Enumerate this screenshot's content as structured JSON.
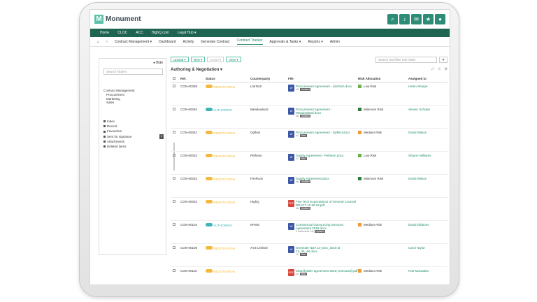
{
  "app": {
    "name": "Monument"
  },
  "colors": {
    "accent": "#2d8c75",
    "nav_bg": "#1f6452",
    "link": "#1e8a68",
    "amber": "#f4b93a",
    "teal": "#3fb5b8",
    "green": "#6cb04a",
    "dark_green": "#2e7d3a",
    "orange": "#ef9b3a"
  },
  "top_icons": [
    "search-icon",
    "bell-icon",
    "mail-icon",
    "star-icon",
    "user-icon"
  ],
  "nav": {
    "items": [
      "Home",
      "CLOC",
      "ACC",
      "HighQ.com",
      "Legal Hub ▾"
    ]
  },
  "subnav": {
    "items": [
      {
        "label": "Contract Management ▾"
      },
      {
        "label": "Dashboard"
      },
      {
        "label": "Activity"
      },
      {
        "label": "Generate Contract"
      },
      {
        "label": "Contract Tracker",
        "active": true
      },
      {
        "label": "Approvals & Tasks ▾"
      },
      {
        "label": "Reports ▾"
      },
      {
        "label": "Admin"
      }
    ]
  },
  "sidebar": {
    "hide_label": "◂ Hide",
    "search_placeholder": "Search folders",
    "tree": [
      "Contract Management",
      "Procurement",
      "Marketing",
      "Sales"
    ],
    "links": [
      "Index",
      "Recent",
      "Favourites",
      "Sent for signature",
      "Attachments",
      "Deleted items"
    ],
    "sent_count": "2"
  },
  "toolbar": {
    "upload": "Upload ▾",
    "new": "New ▾",
    "action": "Action ▾",
    "view": "View ▾",
    "search_placeholder": "Search and filter this folder"
  },
  "section": {
    "title": "Authoring & Negotiation ▾"
  },
  "table": {
    "headers": [
      "Ref.",
      "Status",
      "Counterparty",
      "File",
      "Risk Allocation",
      "Assigned to"
    ],
    "rows": [
      {
        "ref": "CON-00339",
        "status": "NEGOTIATION",
        "status_color": "#f4b93a",
        "counterparty": "LiteTech",
        "file_type": "W",
        "file": "Procurement Agreement - LiteTech.docx",
        "meta": "v2,",
        "tag": "Updated",
        "risk_color": "#6cb04a",
        "risk": "Low Risk",
        "assigned": "Helen Sharpe"
      },
      {
        "ref": "CON-00040",
        "status": "AUTHORING",
        "status_color": "#3fb5b8",
        "counterparty": "Meadowland",
        "file_type": "W",
        "file": "Procurement Agreement - Meadowland.docx",
        "meta": "v6,",
        "tag": "Updated",
        "risk_color": "#2e7d3a",
        "risk": "Minimum Risk",
        "assigned": "Steven Scholes"
      },
      {
        "ref": "CON-00042",
        "status": "NEGOTIATION",
        "status_color": "#f4b93a",
        "counterparty": "Opflexl",
        "file_type": "W",
        "file": "Procurement Agreement - Opflexl.docx",
        "meta": "v1,",
        "tag": "New",
        "risk_color": "#ef9b3a",
        "risk": "Medium Risk",
        "assigned": "David Wilson"
      },
      {
        "ref": "CON-00032",
        "status": "NEGOTIATION",
        "status_color": "#f4b93a",
        "counterparty": "Petheon",
        "file_type": "W",
        "file": "Supply Agreement - Petheon.docx",
        "meta": "v1,",
        "tag": "New",
        "risk_color": "#6cb04a",
        "risk": "Low Risk",
        "assigned": "Sharon Williams"
      },
      {
        "ref": "CON-00033",
        "status": "NEGOTIATION",
        "status_color": "#f4b93a",
        "counterparty": "FireRock",
        "file_type": "W",
        "file": "Supply Agreement.docx",
        "meta": "v6,",
        "tag": "Updated",
        "risk_color": "#2e7d3a",
        "risk": "Minimum Risk",
        "assigned": "David Wilson"
      },
      {
        "ref": "CON-00034",
        "status": "NEGOTIATION",
        "status_color": "#f4b93a",
        "counterparty": "HighQ",
        "file_type": "PDF",
        "file": "Five Tech Expectations of General Counsel DRAFT 10.30.18.pdf",
        "meta": "v6,",
        "tag": "Updated",
        "risk_color": "",
        "risk": "",
        "assigned": ""
      },
      {
        "ref": "CON-00104",
        "status": "AUTHORING",
        "status_color": "#3fb5b8",
        "counterparty": "KPMG",
        "file_type": "W",
        "file": "Commercial Outsourcing Services Agreement 2018.docx",
        "meta": "1 comment, v6,",
        "tag": "Updated",
        "risk_color": "#ef9b3a",
        "risk": "Medium Risk",
        "assigned": "David Gibbons"
      },
      {
        "ref": "CON-00106",
        "status": "NEGOTIATION",
        "status_color": "#f4b93a",
        "counterparty": "XYZ Limited",
        "file_type": "W",
        "file": "Generate NDA 10_Dec_2018 at 13_45_48.docx",
        "meta": "v1,",
        "tag": "New",
        "risk_color": "",
        "risk": "",
        "assigned": "Carol Taylor"
      },
      {
        "ref": "CON-00110",
        "status": "NEGOTIATION",
        "status_color": "#f4b93a",
        "counterparty": "",
        "file_type": "PDF",
        "file": "Shareholder agreement 2018 (executed).pdf",
        "meta": "v1,",
        "tag": "New",
        "risk_color": "#ef9b3a",
        "risk": "Medium Risk",
        "assigned": "Rob Macadam"
      }
    ]
  }
}
